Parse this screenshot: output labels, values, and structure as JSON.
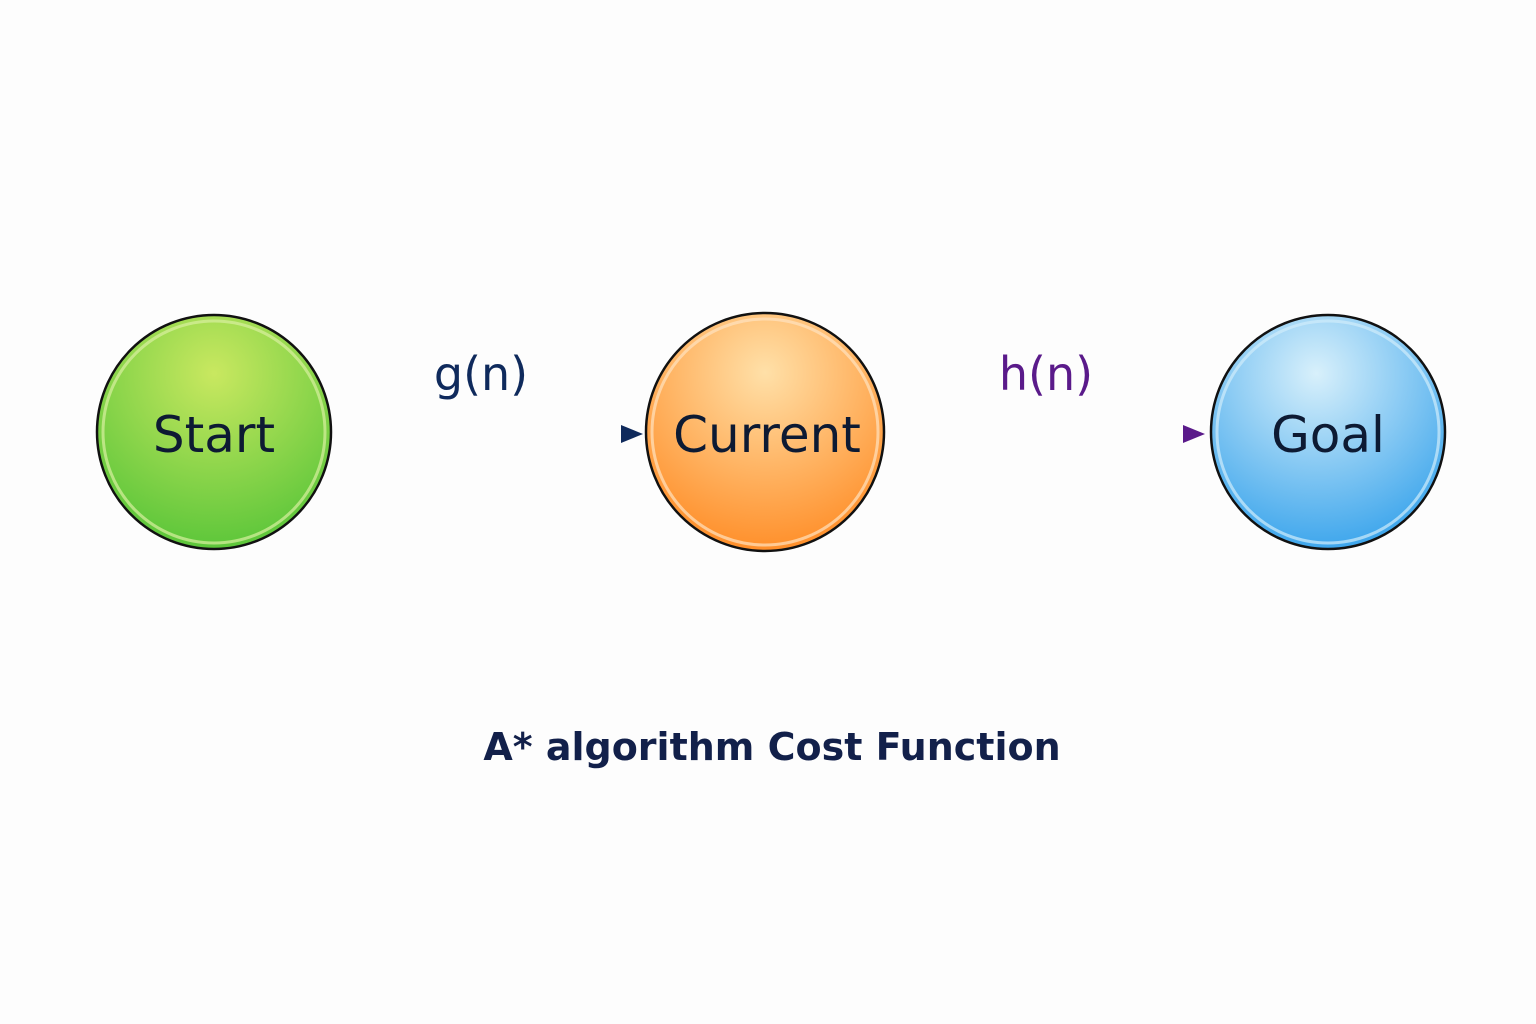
{
  "diagram": {
    "title": "A* algorithm Cost Function",
    "nodes": [
      {
        "label": "Start",
        "color": "#7ed23c"
      },
      {
        "label": "Current",
        "color": "#ffa64a"
      },
      {
        "label": "Goal",
        "color": "#5ab4ee"
      }
    ],
    "edges": [
      {
        "from": "Start",
        "to": "Current",
        "label": "g(n)",
        "color": "#0f2a5c"
      },
      {
        "from": "Current",
        "to": "Goal",
        "label": "h(n)",
        "color": "#5a1a8a"
      }
    ]
  }
}
